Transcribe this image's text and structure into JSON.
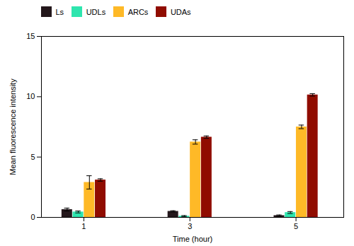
{
  "chart_data": {
    "type": "bar",
    "xlabel": "Time (hour)",
    "ylabel": "Mean fluorescence intensity",
    "x": [
      1,
      3,
      5
    ],
    "series": [
      {
        "name": "Ls",
        "values": [
          0.65,
          0.5,
          0.15
        ],
        "errors": [
          0.12,
          0.05,
          0.05
        ]
      },
      {
        "name": "UDLs",
        "values": [
          0.45,
          0.1,
          0.4
        ],
        "errors": [
          0.08,
          0.05,
          0.08
        ]
      },
      {
        "name": "ARCs",
        "values": [
          2.9,
          6.25,
          7.5
        ],
        "errors": [
          0.55,
          0.18,
          0.15
        ]
      },
      {
        "name": "UDAs",
        "values": [
          3.1,
          6.65,
          10.15
        ],
        "errors": [
          0.1,
          0.1,
          0.1
        ]
      }
    ],
    "xlim": [
      0.2,
      5.9
    ],
    "xticks": [
      1,
      3,
      5
    ],
    "ylim": [
      0,
      15
    ],
    "yticks": [
      0,
      5,
      10,
      15
    ],
    "grid": false,
    "legend": "upper left"
  }
}
